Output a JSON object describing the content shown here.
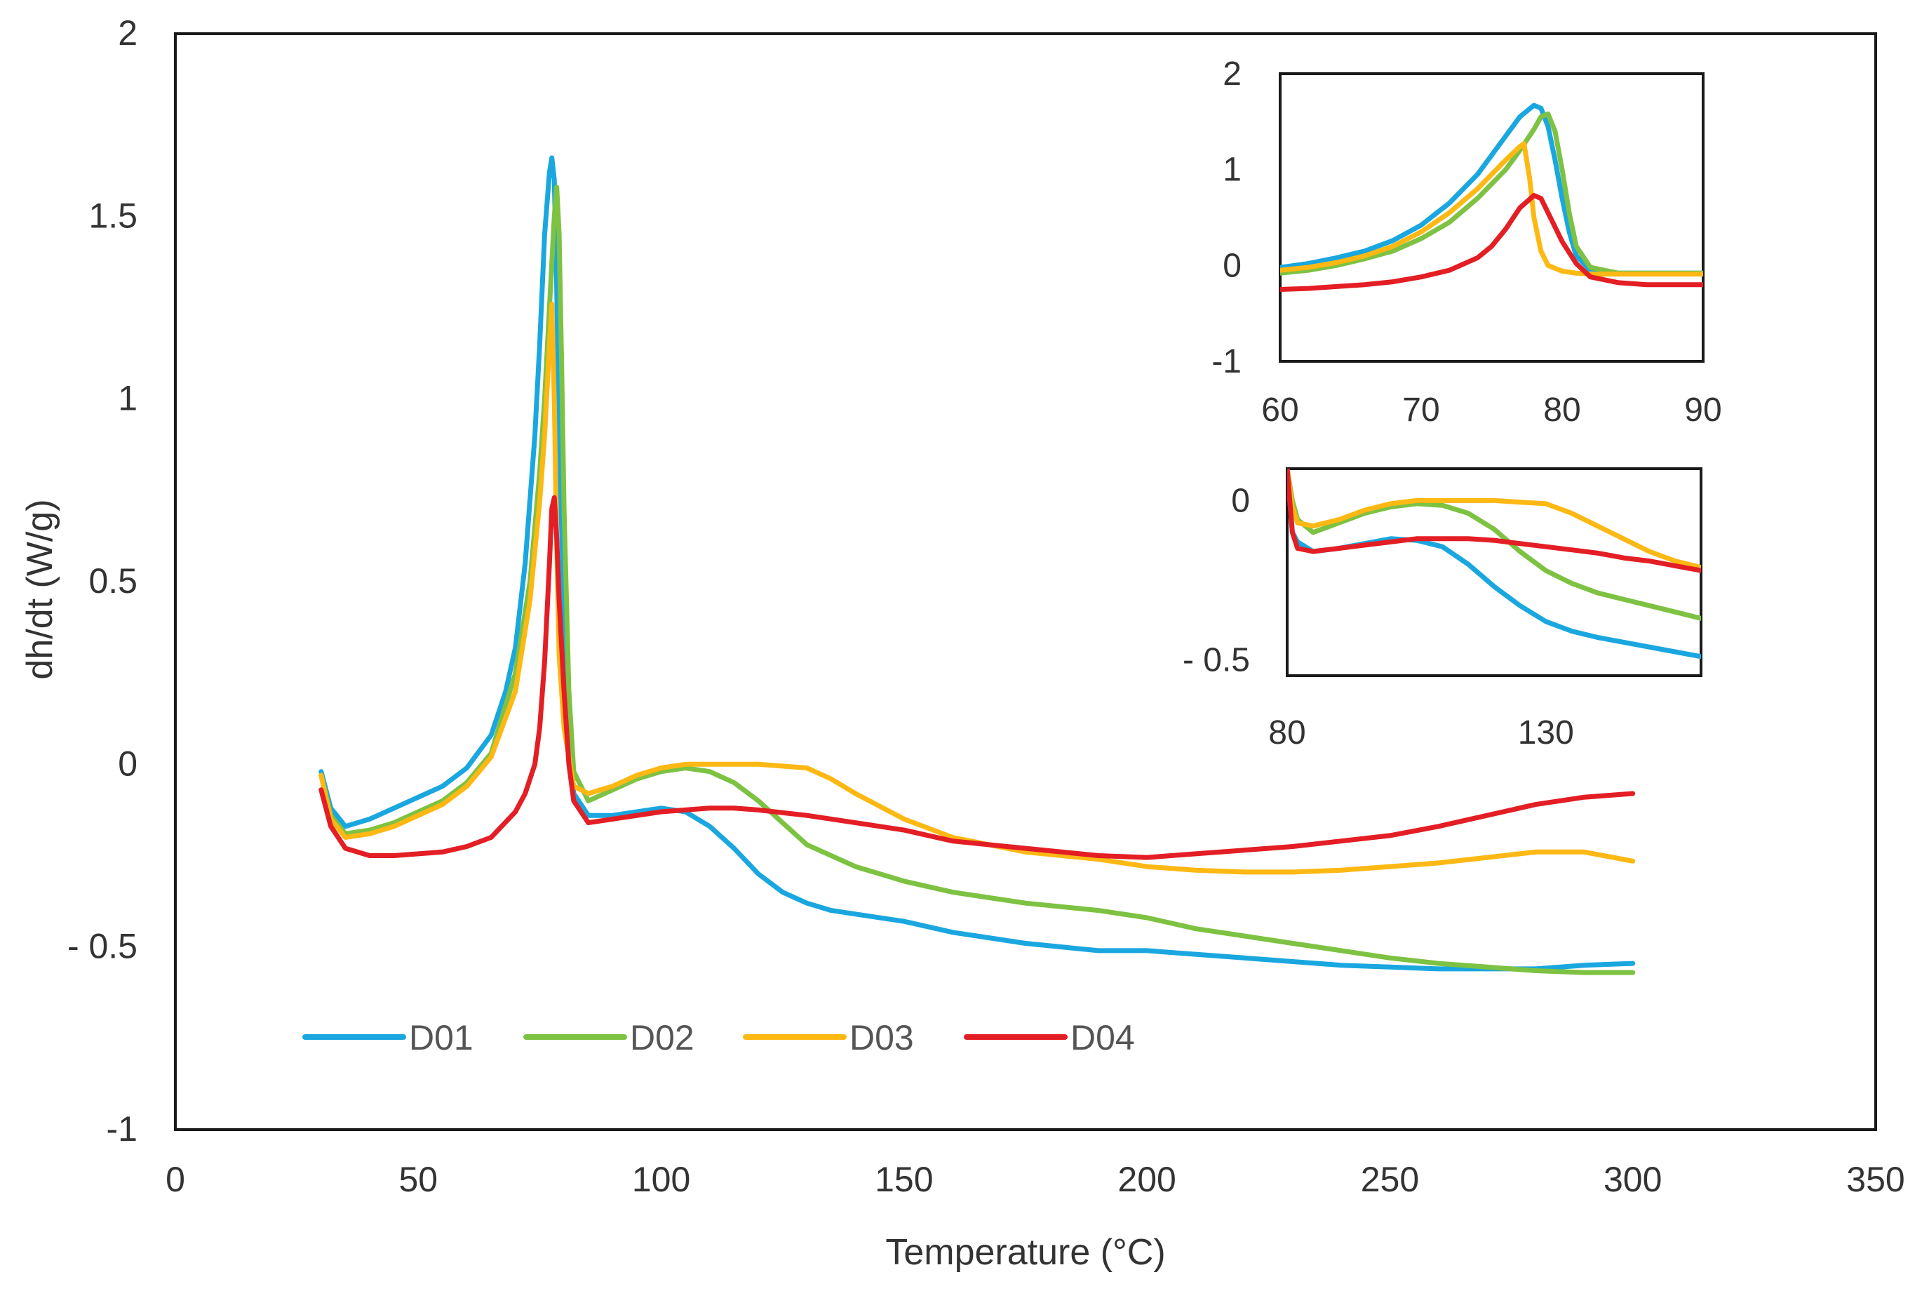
{
  "chart_data": [
    {
      "type": "line",
      "name": "main",
      "xlabel": "Temperature (°C)",
      "ylabel": "dh/dt (W/g)",
      "xlim": [
        0,
        350
      ],
      "ylim": [
        -1,
        2
      ],
      "xticks": [
        0,
        50,
        100,
        150,
        200,
        250,
        300,
        350
      ],
      "xtick_labels": [
        "0",
        "50",
        "100",
        "150",
        "200",
        "250",
        "300",
        "350"
      ],
      "yticks": [
        -1,
        -0.5,
        0,
        0.5,
        1,
        1.5,
        2
      ],
      "ytick_labels": [
        "-1",
        "- 0.5",
        "0",
        "0.5",
        "1",
        "1.5",
        "2"
      ],
      "grid": false,
      "legend": "bottom-left",
      "series": [
        {
          "name": "D01",
          "color": "#1AA7E0",
          "x": [
            30,
            32,
            35,
            40,
            45,
            50,
            55,
            60,
            65,
            68,
            70,
            72,
            74,
            75,
            76,
            77,
            77.5,
            78,
            78.5,
            79,
            80,
            81,
            82,
            85,
            90,
            100,
            105,
            110,
            115,
            120,
            125,
            130,
            135,
            140,
            150,
            160,
            175,
            190,
            200,
            210,
            220,
            230,
            240,
            250,
            260,
            270,
            280,
            290,
            300
          ],
          "y": [
            -0.02,
            -0.12,
            -0.17,
            -0.15,
            -0.12,
            -0.09,
            -0.06,
            -0.01,
            0.08,
            0.2,
            0.32,
            0.55,
            0.9,
            1.15,
            1.45,
            1.62,
            1.66,
            1.6,
            1.3,
            0.9,
            0.4,
            0.06,
            -0.08,
            -0.14,
            -0.14,
            -0.12,
            -0.13,
            -0.17,
            -0.23,
            -0.3,
            -0.35,
            -0.38,
            -0.4,
            -0.41,
            -0.43,
            -0.46,
            -0.49,
            -0.51,
            -0.51,
            -0.52,
            -0.53,
            -0.54,
            -0.55,
            -0.555,
            -0.56,
            -0.56,
            -0.56,
            -0.55,
            -0.545
          ]
        },
        {
          "name": "D02",
          "color": "#7DC242",
          "x": [
            30,
            32,
            35,
            40,
            45,
            50,
            55,
            60,
            65,
            70,
            73,
            75,
            76,
            77,
            78,
            78.5,
            79,
            79.5,
            80,
            81,
            82,
            85,
            90,
            95,
            100,
            105,
            110,
            115,
            120,
            125,
            130,
            140,
            150,
            160,
            175,
            190,
            200,
            210,
            220,
            230,
            240,
            250,
            260,
            270,
            280,
            290,
            300
          ],
          "y": [
            -0.03,
            -0.14,
            -0.19,
            -0.18,
            -0.16,
            -0.13,
            -0.1,
            -0.05,
            0.03,
            0.25,
            0.5,
            0.8,
            1.0,
            1.25,
            1.5,
            1.58,
            1.45,
            1.1,
            0.7,
            0.2,
            -0.02,
            -0.1,
            -0.07,
            -0.04,
            -0.02,
            -0.01,
            -0.02,
            -0.05,
            -0.1,
            -0.16,
            -0.22,
            -0.28,
            -0.32,
            -0.35,
            -0.38,
            -0.4,
            -0.42,
            -0.45,
            -0.47,
            -0.49,
            -0.51,
            -0.53,
            -0.545,
            -0.555,
            -0.565,
            -0.57,
            -0.57
          ]
        },
        {
          "name": "D03",
          "color": "#FDB813",
          "x": [
            30,
            32,
            35,
            40,
            45,
            50,
            55,
            60,
            65,
            70,
            73,
            75,
            76,
            77,
            77.5,
            78,
            78.5,
            79,
            80,
            82,
            85,
            90,
            95,
            100,
            105,
            110,
            115,
            120,
            125,
            130,
            135,
            140,
            150,
            160,
            175,
            190,
            200,
            210,
            220,
            230,
            240,
            250,
            260,
            270,
            280,
            290,
            300
          ],
          "y": [
            -0.03,
            -0.15,
            -0.2,
            -0.19,
            -0.17,
            -0.14,
            -0.11,
            -0.06,
            0.02,
            0.2,
            0.45,
            0.72,
            0.9,
            1.15,
            1.26,
            1.0,
            0.6,
            0.3,
            0.1,
            -0.06,
            -0.08,
            -0.06,
            -0.03,
            -0.01,
            0,
            0,
            0,
            0,
            -0.005,
            -0.01,
            -0.04,
            -0.08,
            -0.15,
            -0.2,
            -0.24,
            -0.26,
            -0.28,
            -0.29,
            -0.295,
            -0.295,
            -0.29,
            -0.28,
            -0.27,
            -0.255,
            -0.24,
            -0.24,
            -0.265
          ]
        },
        {
          "name": "D04",
          "color": "#E31E24",
          "x": [
            30,
            32,
            35,
            40,
            45,
            50,
            55,
            60,
            65,
            70,
            72,
            74,
            75,
            76,
            77,
            77.5,
            78,
            78.5,
            79,
            80,
            81,
            82,
            85,
            90,
            100,
            110,
            115,
            120,
            130,
            140,
            150,
            160,
            175,
            190,
            200,
            210,
            220,
            230,
            240,
            250,
            260,
            270,
            280,
            290,
            300
          ],
          "y": [
            -0.07,
            -0.17,
            -0.23,
            -0.25,
            -0.25,
            -0.245,
            -0.24,
            -0.225,
            -0.2,
            -0.13,
            -0.08,
            0.0,
            0.1,
            0.28,
            0.55,
            0.7,
            0.73,
            0.62,
            0.45,
            0.2,
            0.0,
            -0.1,
            -0.16,
            -0.15,
            -0.13,
            -0.12,
            -0.12,
            -0.125,
            -0.14,
            -0.16,
            -0.18,
            -0.21,
            -0.23,
            -0.25,
            -0.255,
            -0.245,
            -0.235,
            -0.225,
            -0.21,
            -0.195,
            -0.17,
            -0.14,
            -0.11,
            -0.09,
            -0.08
          ]
        }
      ]
    },
    {
      "type": "line",
      "name": "inset-peak",
      "xlim": [
        60,
        90
      ],
      "ylim": [
        -1,
        2
      ],
      "xticks": [
        60,
        70,
        80,
        90
      ],
      "xtick_labels": [
        "60",
        "70",
        "80",
        "90"
      ],
      "yticks": [
        -1,
        0,
        1,
        2
      ],
      "ytick_labels": [
        "-1",
        "0",
        "1",
        "2"
      ],
      "series": [
        {
          "name": "D01",
          "color": "#1AA7E0",
          "x": [
            60,
            62,
            64,
            66,
            68,
            70,
            72,
            74,
            75,
            76,
            77,
            78,
            78.5,
            79,
            79.5,
            80,
            80.5,
            81,
            82,
            84,
            86,
            88,
            90
          ],
          "y": [
            -0.02,
            0.02,
            0.08,
            0.15,
            0.26,
            0.42,
            0.65,
            0.95,
            1.15,
            1.35,
            1.55,
            1.67,
            1.64,
            1.45,
            1.1,
            0.7,
            0.35,
            0.1,
            -0.05,
            -0.08,
            -0.08,
            -0.08,
            -0.08
          ]
        },
        {
          "name": "D02",
          "color": "#7DC242",
          "x": [
            60,
            62,
            64,
            66,
            68,
            70,
            72,
            74,
            76,
            77,
            78,
            78.5,
            79,
            79.5,
            80,
            80.5,
            81,
            82,
            84,
            86,
            88,
            90
          ],
          "y": [
            -0.08,
            -0.05,
            0.0,
            0.07,
            0.15,
            0.28,
            0.45,
            0.7,
            1.0,
            1.2,
            1.42,
            1.55,
            1.58,
            1.4,
            1.0,
            0.55,
            0.2,
            -0.02,
            -0.08,
            -0.08,
            -0.08,
            -0.08
          ]
        },
        {
          "name": "D03",
          "color": "#FDB813",
          "x": [
            60,
            62,
            64,
            66,
            68,
            70,
            72,
            74,
            76,
            77,
            77.3,
            77.7,
            78,
            78.5,
            79,
            80,
            81,
            82,
            84,
            86,
            88,
            90
          ],
          "y": [
            -0.05,
            -0.02,
            0.03,
            0.1,
            0.2,
            0.35,
            0.55,
            0.8,
            1.1,
            1.24,
            1.27,
            0.9,
            0.5,
            0.15,
            0.0,
            -0.06,
            -0.08,
            -0.09,
            -0.09,
            -0.09,
            -0.09,
            -0.09
          ]
        },
        {
          "name": "D04",
          "color": "#E31E24",
          "x": [
            60,
            62,
            64,
            66,
            68,
            70,
            72,
            74,
            75,
            76,
            77,
            78,
            78.5,
            79,
            80,
            81,
            82,
            84,
            86,
            88,
            90
          ],
          "y": [
            -0.25,
            -0.24,
            -0.22,
            -0.2,
            -0.17,
            -0.12,
            -0.05,
            0.08,
            0.2,
            0.38,
            0.6,
            0.73,
            0.7,
            0.55,
            0.25,
            0.02,
            -0.12,
            -0.18,
            -0.2,
            -0.2,
            -0.2
          ]
        }
      ]
    },
    {
      "type": "line",
      "name": "inset-tail",
      "xlim": [
        80,
        160
      ],
      "ylim": [
        -0.55,
        0.1
      ],
      "xticks": [
        80,
        130
      ],
      "xtick_labels": [
        "80",
        "130"
      ],
      "yticks": [
        0,
        -0.5
      ],
      "ytick_labels": [
        "0",
        "- 0.5"
      ],
      "series": [
        {
          "name": "D01",
          "color": "#1AA7E0",
          "x": [
            80,
            81,
            82,
            85,
            90,
            95,
            100,
            105,
            110,
            115,
            120,
            125,
            130,
            135,
            140,
            145,
            150,
            155,
            160
          ],
          "y": [
            0.1,
            -0.1,
            -0.13,
            -0.16,
            -0.15,
            -0.135,
            -0.12,
            -0.125,
            -0.145,
            -0.2,
            -0.27,
            -0.33,
            -0.38,
            -0.41,
            -0.43,
            -0.445,
            -0.46,
            -0.475,
            -0.49
          ]
        },
        {
          "name": "D02",
          "color": "#7DC242",
          "x": [
            80,
            81,
            82,
            85,
            90,
            95,
            100,
            105,
            110,
            115,
            120,
            125,
            130,
            135,
            140,
            145,
            150,
            155,
            160
          ],
          "y": [
            0.1,
            0.0,
            -0.06,
            -0.1,
            -0.07,
            -0.04,
            -0.02,
            -0.01,
            -0.015,
            -0.04,
            -0.09,
            -0.16,
            -0.22,
            -0.26,
            -0.29,
            -0.31,
            -0.33,
            -0.35,
            -0.37
          ]
        },
        {
          "name": "D03",
          "color": "#FDB813",
          "x": [
            80,
            81,
            82,
            85,
            90,
            95,
            100,
            105,
            110,
            115,
            120,
            125,
            130,
            135,
            140,
            145,
            150,
            155,
            160
          ],
          "y": [
            0.1,
            -0.02,
            -0.07,
            -0.08,
            -0.06,
            -0.03,
            -0.01,
            0,
            0,
            0,
            0,
            -0.005,
            -0.01,
            -0.04,
            -0.08,
            -0.12,
            -0.16,
            -0.19,
            -0.21
          ]
        },
        {
          "name": "D04",
          "color": "#E31E24",
          "x": [
            80,
            81,
            82,
            85,
            90,
            95,
            100,
            105,
            110,
            115,
            120,
            125,
            130,
            135,
            140,
            145,
            150,
            155,
            160
          ],
          "y": [
            0.1,
            -0.1,
            -0.15,
            -0.16,
            -0.15,
            -0.14,
            -0.13,
            -0.12,
            -0.12,
            -0.12,
            -0.125,
            -0.135,
            -0.145,
            -0.155,
            -0.165,
            -0.18,
            -0.19,
            -0.205,
            -0.22
          ]
        }
      ]
    }
  ]
}
